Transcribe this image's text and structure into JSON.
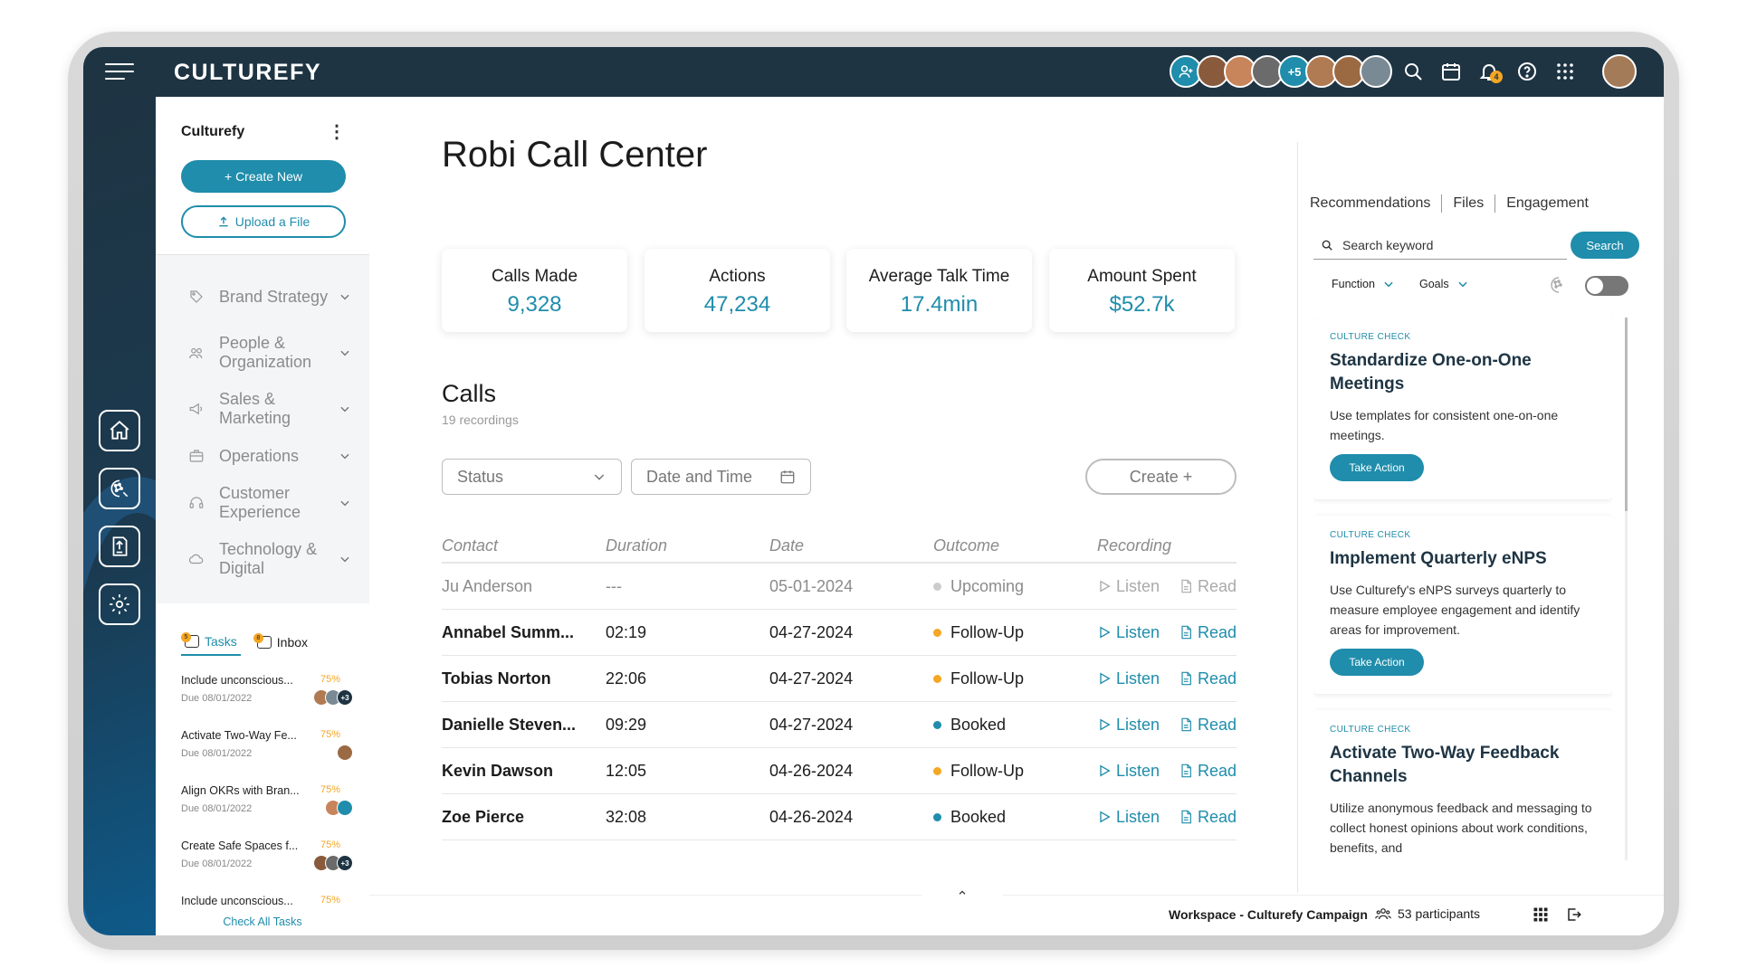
{
  "app": {
    "brand": "CULTUREFY",
    "accent": "#1f8dab",
    "topbar_color": "#1e3443"
  },
  "topbar": {
    "avatars_more": "+5",
    "notification_count": "4",
    "icons": [
      "search-icon",
      "calendar-icon",
      "bell-icon",
      "help-icon",
      "apps-grid-icon"
    ]
  },
  "sidebar": {
    "workspace_name": "Culturefy",
    "create_label": "+ Create New",
    "upload_label": "Upload a File",
    "items": [
      {
        "label": "Brand Strategy"
      },
      {
        "label": "People & Organization"
      },
      {
        "label": "Sales & Marketing"
      },
      {
        "label": "Operations"
      },
      {
        "label": "Customer Experience"
      },
      {
        "label": "Technology & Digital"
      }
    ],
    "tasks_tab": "Tasks",
    "tasks_badge": "5",
    "inbox_tab": "Inbox",
    "inbox_badge": "8",
    "tasks": [
      {
        "title": "Include unconscious...",
        "pct": "75%",
        "due": "Due 08/01/2022",
        "extra": "+3"
      },
      {
        "title": "Activate Two-Way Fe...",
        "pct": "75%",
        "due": "Due 08/01/2022",
        "extra": ""
      },
      {
        "title": "Align OKRs with Bran...",
        "pct": "75%",
        "due": "Due 08/01/2022",
        "extra": ""
      },
      {
        "title": "Create Safe Spaces f...",
        "pct": "75%",
        "due": "Due 08/01/2022",
        "extra": "+3"
      },
      {
        "title": "Include unconscious...",
        "pct": "75%",
        "due": "",
        "extra": ""
      }
    ],
    "check_all": "Check All Tasks"
  },
  "main": {
    "title": "Robi Call Center",
    "stats": [
      {
        "label": "Calls Made",
        "value": "9,328"
      },
      {
        "label": "Actions",
        "value": "47,234"
      },
      {
        "label": "Average Talk Time",
        "value": "17.4min"
      },
      {
        "label": "Amount Spent",
        "value": "$52.7k"
      }
    ],
    "calls_title": "Calls",
    "calls_sub": "19 recordings",
    "filter_status": "Status",
    "filter_date": "Date and Time",
    "create_label": "Create +",
    "columns": [
      "Contact",
      "Duration",
      "Date",
      "Outcome",
      "Recording"
    ],
    "listen_label": "Listen",
    "read_label": "Read",
    "rows": [
      {
        "contact": "Ju Anderson",
        "duration": "---",
        "date": "05-01-2024",
        "outcome": "Upcoming",
        "status_color": "#cccccc"
      },
      {
        "contact": "Annabel Summ...",
        "duration": "02:19",
        "date": "04-27-2024",
        "outcome": "Follow-Up",
        "status_color": "#f5a623"
      },
      {
        "contact": "Tobias Norton",
        "duration": "22:06",
        "date": "04-27-2024",
        "outcome": "Follow-Up",
        "status_color": "#f5a623"
      },
      {
        "contact": "Danielle Steven...",
        "duration": "09:29",
        "date": "04-27-2024",
        "outcome": "Booked",
        "status_color": "#1f8dab"
      },
      {
        "contact": "Kevin Dawson",
        "duration": "12:05",
        "date": "04-26-2024",
        "outcome": "Follow-Up",
        "status_color": "#f5a623"
      },
      {
        "contact": "Zoe Pierce",
        "duration": "32:08",
        "date": "04-26-2024",
        "outcome": "Booked",
        "status_color": "#1f8dab"
      }
    ]
  },
  "right": {
    "tabs": [
      "Recommendations",
      "Files",
      "Engagement"
    ],
    "search_placeholder": "Search keyword",
    "search_button": "Search",
    "filter_function": "Function",
    "filter_goals": "Goals",
    "recommendations": [
      {
        "kicker": "CULTURE CHECK",
        "title": "Standardize One-on-One Meetings",
        "body": "Use templates for consistent one-on-one meetings.",
        "action": "Take Action"
      },
      {
        "kicker": "CULTURE CHECK",
        "title": "Implement Quarterly eNPS",
        "body": "Use Culturefy's eNPS surveys quarterly to measure employee engagement and identify areas for improvement.",
        "action": "Take Action"
      },
      {
        "kicker": "CULTURE CHECK",
        "title": "Activate Two-Way Feedback Channels",
        "body": "Utilize anonymous feedback and messaging to collect honest opinions about work conditions, benefits, and",
        "action": ""
      }
    ]
  },
  "footer": {
    "workspace": "Workspace - Culturefy Campaign",
    "participants": "53 participants"
  }
}
